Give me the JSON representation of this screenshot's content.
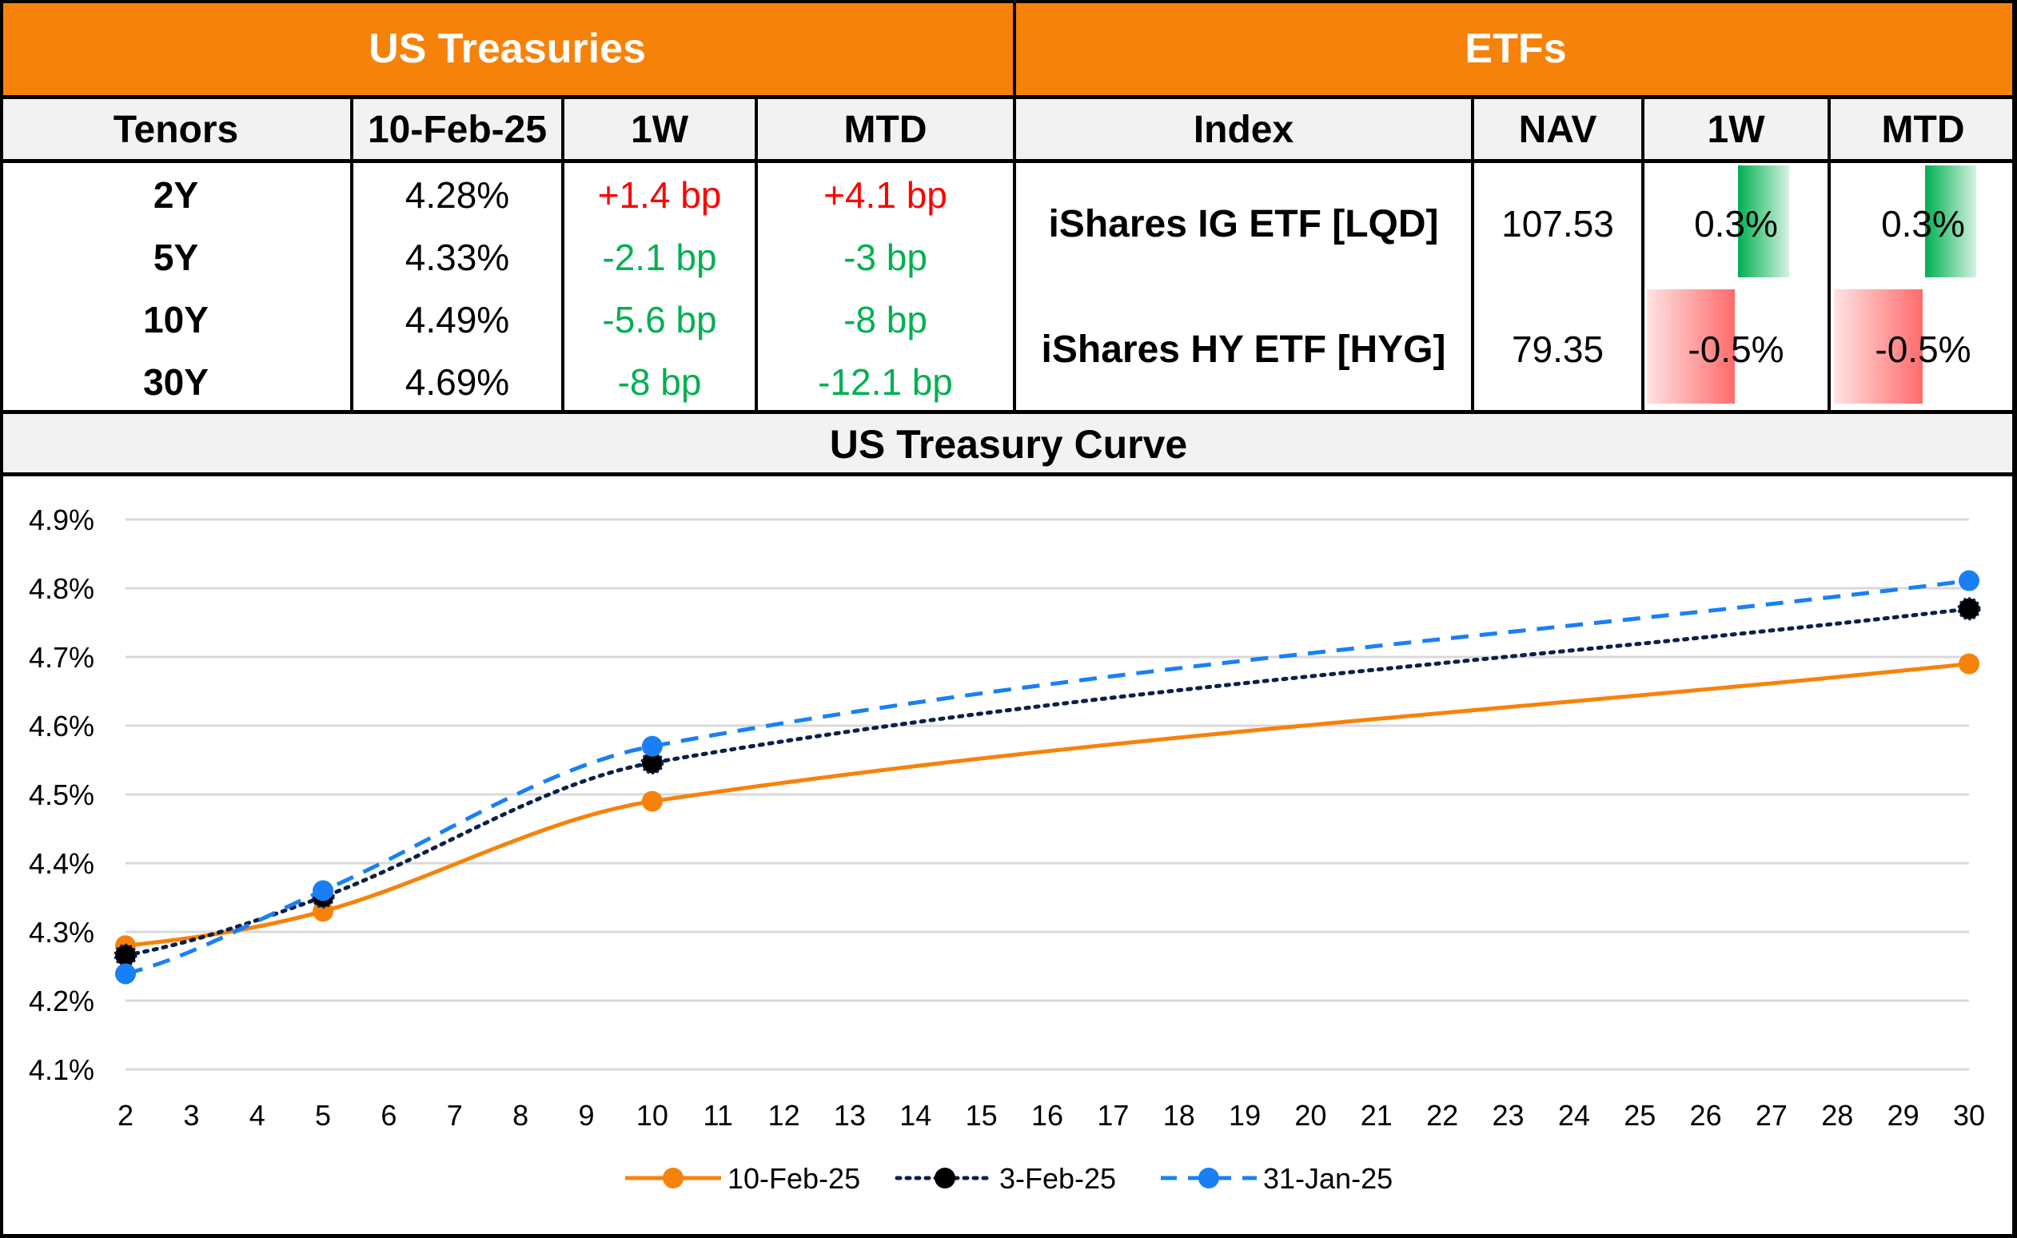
{
  "treasuries": {
    "title": "US Treasuries",
    "headers": [
      "Tenors",
      "10-Feb-25",
      "1W",
      "MTD"
    ],
    "rows": [
      {
        "tenor": "2Y",
        "yield": "4.28%",
        "w1": "+1.4 bp",
        "mtd": "+4.1 bp",
        "w1_dir": "pos",
        "mtd_dir": "pos"
      },
      {
        "tenor": "5Y",
        "yield": "4.33%",
        "w1": "-2.1 bp",
        "mtd": "-3 bp",
        "w1_dir": "neg",
        "mtd_dir": "neg"
      },
      {
        "tenor": "10Y",
        "yield": "4.49%",
        "w1": "-5.6 bp",
        "mtd": "-8 bp",
        "w1_dir": "neg",
        "mtd_dir": "neg"
      },
      {
        "tenor": "30Y",
        "yield": "4.69%",
        "w1": "-8 bp",
        "mtd": "-12.1 bp",
        "w1_dir": "neg",
        "mtd_dir": "neg"
      }
    ]
  },
  "etfs": {
    "title": "ETFs",
    "headers": [
      "Index",
      "NAV",
      "1W",
      "MTD"
    ],
    "rows": [
      {
        "index": "iShares IG ETF [LQD]",
        "nav": "107.53",
        "w1": "0.3%",
        "mtd": "0.3%",
        "w1_value": 0.3,
        "mtd_value": 0.3
      },
      {
        "index": "iShares HY ETF [HYG]",
        "nav": "79.35",
        "w1": "-0.5%",
        "mtd": "-0.5%",
        "w1_value": -0.5,
        "mtd_value": -0.5
      }
    ],
    "colors": {
      "positive_bar": "#00B050",
      "negative_bar": "#FF6B6B"
    }
  },
  "colors": {
    "header_orange": "#F7820A",
    "positive_text": "#FF0000",
    "negative_text": "#00B050"
  },
  "chart_data": {
    "type": "line",
    "title": "US Treasury Curve",
    "xlabel": "",
    "ylabel": "",
    "x_ticks": [
      2,
      3,
      4,
      5,
      6,
      7,
      8,
      9,
      10,
      11,
      12,
      13,
      14,
      15,
      16,
      17,
      18,
      19,
      20,
      21,
      22,
      23,
      24,
      25,
      26,
      27,
      28,
      29,
      30
    ],
    "y_ticks": [
      "4.1%",
      "4.2%",
      "4.3%",
      "4.4%",
      "4.5%",
      "4.6%",
      "4.7%",
      "4.8%",
      "4.9%"
    ],
    "ylim": [
      4.1,
      4.9
    ],
    "xlim": [
      2,
      30
    ],
    "grid": "horizontal",
    "legend_position": "bottom",
    "series": [
      {
        "name": "10-Feb-25",
        "color": "#F7820A",
        "style": "solid",
        "x": [
          2,
          5,
          10,
          30
        ],
        "values": [
          4.28,
          4.33,
          4.49,
          4.69
        ]
      },
      {
        "name": "3-Feb-25",
        "color": "#0B1F4B",
        "style": "dotted",
        "x": [
          2,
          5,
          10,
          30
        ],
        "values": [
          4.266,
          4.351,
          4.546,
          4.77
        ]
      },
      {
        "name": "31-Jan-25",
        "color": "#1A7FF5",
        "style": "dashed",
        "x": [
          2,
          5,
          10,
          30
        ],
        "values": [
          4.239,
          4.36,
          4.57,
          4.811
        ]
      }
    ]
  }
}
